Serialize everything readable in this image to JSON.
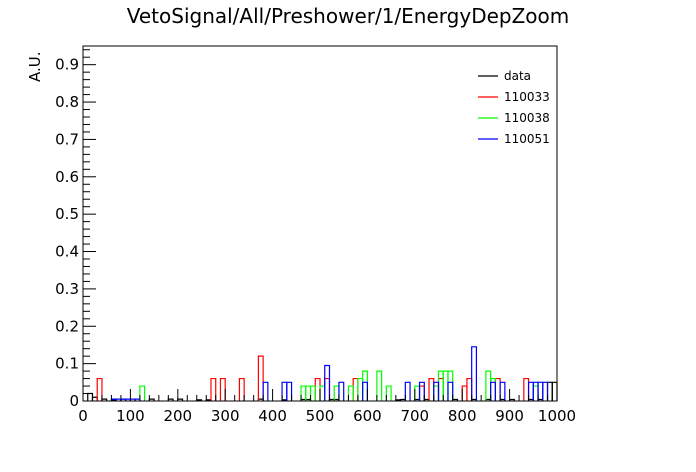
{
  "chart_data": {
    "type": "histogram-step",
    "title": "VetoSignal/All/Preshower/1/EnergyDepZoom",
    "xlabel": "",
    "ylabel": "A.U.",
    "xlim": [
      0,
      1000
    ],
    "ylim": [
      0,
      0.95
    ],
    "bin_width": 10,
    "xticks": [
      0,
      100,
      200,
      300,
      400,
      500,
      600,
      700,
      800,
      900,
      1000
    ],
    "xtick_labels": [
      "0",
      "100",
      "200",
      "300",
      "400",
      "500",
      "600",
      "700",
      "800",
      "900",
      "1000"
    ],
    "yticks": [
      0,
      0.1,
      0.2,
      0.3,
      0.4,
      0.5,
      0.6,
      0.7,
      0.8,
      0.9
    ],
    "ytick_labels": [
      "0",
      "0.1",
      "0.2",
      "0.3",
      "0.4",
      "0.5",
      "0.6",
      "0.7",
      "0.8",
      "0.9"
    ],
    "grid": false,
    "legend_position": "top-right",
    "series": [
      {
        "name": "data",
        "color": "#000000",
        "bins": [
          {
            "x": 10,
            "y": 0.02
          },
          {
            "x": 20,
            "y": 0.01
          },
          {
            "x": 40,
            "y": 0.005
          },
          {
            "x": 60,
            "y": 0.003
          },
          {
            "x": 80,
            "y": 0.005
          },
          {
            "x": 140,
            "y": 0.005
          },
          {
            "x": 180,
            "y": 0.005
          },
          {
            "x": 200,
            "y": 0.005
          },
          {
            "x": 240,
            "y": 0.003
          },
          {
            "x": 260,
            "y": 0.003
          },
          {
            "x": 370,
            "y": 0.005
          },
          {
            "x": 420,
            "y": 0.003
          },
          {
            "x": 460,
            "y": 0.004
          },
          {
            "x": 470,
            "y": 0.004
          },
          {
            "x": 520,
            "y": 0.004
          },
          {
            "x": 530,
            "y": 0.004
          },
          {
            "x": 660,
            "y": 0.003
          },
          {
            "x": 670,
            "y": 0.004
          },
          {
            "x": 700,
            "y": 0.004
          },
          {
            "x": 720,
            "y": 0.004
          },
          {
            "x": 780,
            "y": 0.004
          },
          {
            "x": 820,
            "y": 0.004
          },
          {
            "x": 850,
            "y": 0.004
          },
          {
            "x": 880,
            "y": 0.004
          },
          {
            "x": 900,
            "y": 0.004
          },
          {
            "x": 940,
            "y": 0.004
          },
          {
            "x": 960,
            "y": 0.004
          },
          {
            "x": 980,
            "y": 0.05
          },
          {
            "x": 990,
            "y": 0.05
          }
        ]
      },
      {
        "name": "110033",
        "color": "#ff0000",
        "bins": [
          {
            "x": 30,
            "y": 0.06
          },
          {
            "x": 270,
            "y": 0.06
          },
          {
            "x": 290,
            "y": 0.06
          },
          {
            "x": 330,
            "y": 0.06
          },
          {
            "x": 370,
            "y": 0.12
          },
          {
            "x": 490,
            "y": 0.06
          },
          {
            "x": 510,
            "y": 0.06
          },
          {
            "x": 570,
            "y": 0.06
          },
          {
            "x": 710,
            "y": 0.04
          },
          {
            "x": 730,
            "y": 0.06
          },
          {
            "x": 750,
            "y": 0.06
          },
          {
            "x": 800,
            "y": 0.04
          },
          {
            "x": 810,
            "y": 0.06
          },
          {
            "x": 860,
            "y": 0.06
          },
          {
            "x": 870,
            "y": 0.06
          },
          {
            "x": 930,
            "y": 0.06
          }
        ]
      },
      {
        "name": "110038",
        "color": "#00ff00",
        "bins": [
          {
            "x": 120,
            "y": 0.04
          },
          {
            "x": 460,
            "y": 0.04
          },
          {
            "x": 470,
            "y": 0.04
          },
          {
            "x": 480,
            "y": 0.04
          },
          {
            "x": 500,
            "y": 0.04
          },
          {
            "x": 530,
            "y": 0.04
          },
          {
            "x": 560,
            "y": 0.04
          },
          {
            "x": 580,
            "y": 0.06
          },
          {
            "x": 590,
            "y": 0.08
          },
          {
            "x": 620,
            "y": 0.08
          },
          {
            "x": 640,
            "y": 0.04
          },
          {
            "x": 700,
            "y": 0.04
          },
          {
            "x": 740,
            "y": 0.04
          },
          {
            "x": 750,
            "y": 0.08
          },
          {
            "x": 760,
            "y": 0.08
          },
          {
            "x": 770,
            "y": 0.08
          },
          {
            "x": 850,
            "y": 0.08
          },
          {
            "x": 860,
            "y": 0.06
          },
          {
            "x": 950,
            "y": 0.04
          }
        ]
      },
      {
        "name": "110051",
        "color": "#0000ff",
        "bins": [
          {
            "x": 60,
            "y": 0.005
          },
          {
            "x": 70,
            "y": 0.005
          },
          {
            "x": 80,
            "y": 0.005
          },
          {
            "x": 90,
            "y": 0.005
          },
          {
            "x": 100,
            "y": 0.005
          },
          {
            "x": 110,
            "y": 0.005
          },
          {
            "x": 380,
            "y": 0.05
          },
          {
            "x": 420,
            "y": 0.05
          },
          {
            "x": 430,
            "y": 0.05
          },
          {
            "x": 510,
            "y": 0.095
          },
          {
            "x": 540,
            "y": 0.05
          },
          {
            "x": 590,
            "y": 0.05
          },
          {
            "x": 680,
            "y": 0.05
          },
          {
            "x": 710,
            "y": 0.05
          },
          {
            "x": 740,
            "y": 0.05
          },
          {
            "x": 770,
            "y": 0.05
          },
          {
            "x": 820,
            "y": 0.145
          },
          {
            "x": 860,
            "y": 0.05
          },
          {
            "x": 880,
            "y": 0.05
          },
          {
            "x": 940,
            "y": 0.05
          },
          {
            "x": 950,
            "y": 0.05
          },
          {
            "x": 960,
            "y": 0.05
          },
          {
            "x": 970,
            "y": 0.05
          }
        ]
      }
    ]
  }
}
